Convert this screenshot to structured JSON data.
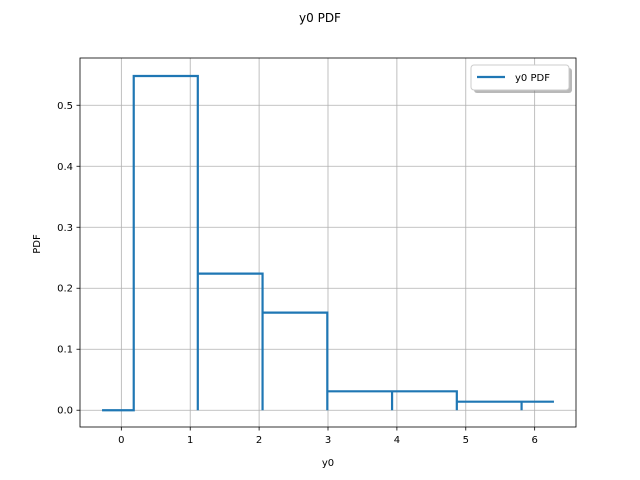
{
  "chart_data": {
    "type": "line",
    "title": "y0 PDF",
    "xlabel": "y0",
    "ylabel": "PDF",
    "xlim": [
      -0.6,
      6.6
    ],
    "ylim": [
      -0.0275,
      0.5775
    ],
    "xticks": [
      0,
      1,
      2,
      3,
      4,
      5,
      6
    ],
    "yticks": [
      0.0,
      0.1,
      0.2,
      0.3,
      0.4,
      0.5
    ],
    "ytick_labels": [
      "0.0",
      "0.1",
      "0.2",
      "0.3",
      "0.4",
      "0.5"
    ],
    "grid": true,
    "legend_position": "top-right",
    "series": [
      {
        "name": "y0 PDF",
        "color": "#1f77b4",
        "x": [
          -0.28,
          0.18,
          0.18,
          1.11,
          1.11,
          1.11,
          1.11,
          2.05,
          2.05,
          2.05,
          2.05,
          2.99,
          2.99,
          2.99,
          2.99,
          3.93,
          3.93,
          3.93,
          3.93,
          4.87,
          4.87,
          4.87,
          4.87,
          5.81,
          5.81,
          5.81,
          5.81,
          6.28
        ],
        "y": [
          0.0,
          0.0,
          0.548,
          0.548,
          0.0,
          0.0,
          0.224,
          0.224,
          0.0,
          0.0,
          0.16,
          0.16,
          0.0,
          0.0,
          0.031,
          0.031,
          0.0,
          0.0,
          0.031,
          0.031,
          0.0,
          0.0,
          0.014,
          0.014,
          0.0,
          0.0,
          0.014,
          0.014
        ]
      }
    ]
  }
}
